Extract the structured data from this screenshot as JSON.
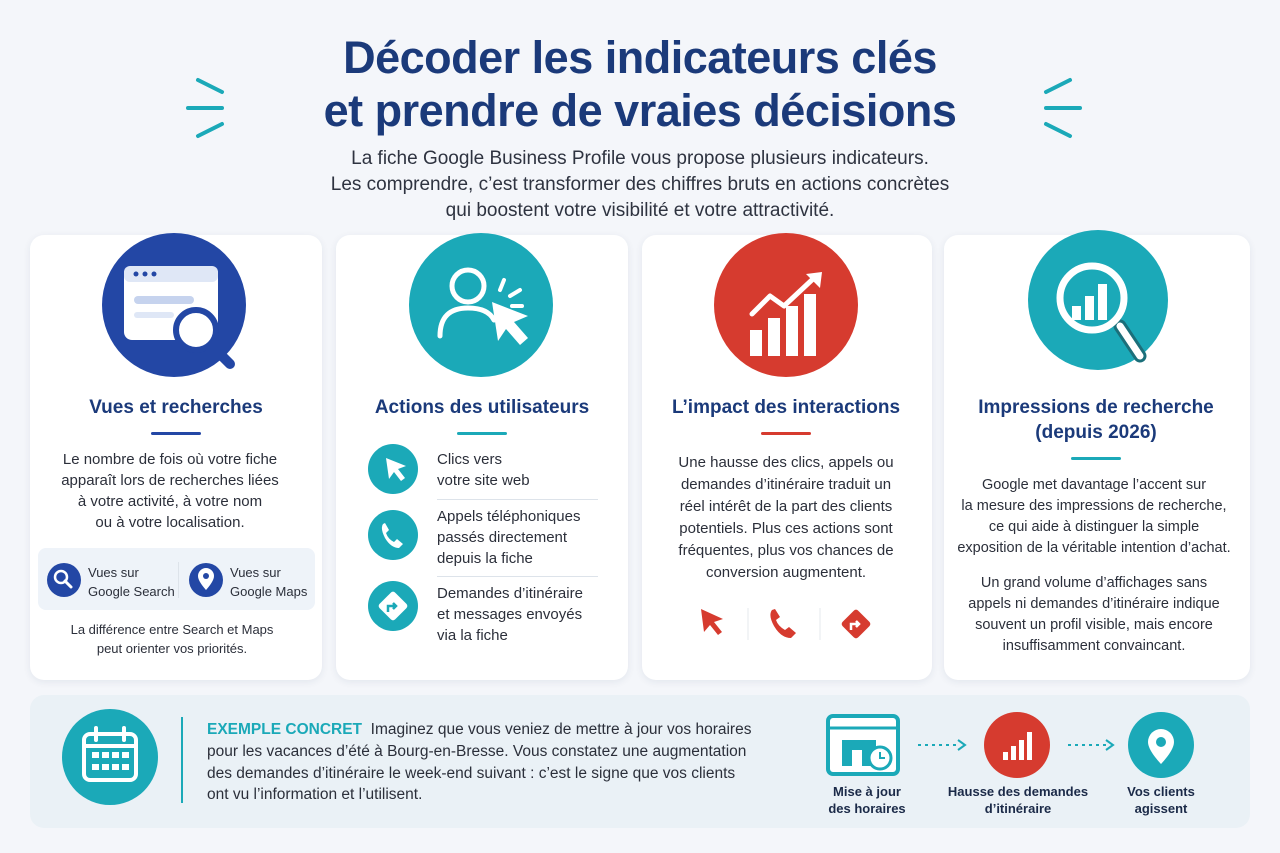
{
  "header": {
    "title": [
      "Décoder les indicateurs clés",
      "et prendre de vraies décisions"
    ],
    "subtitle": [
      "La fiche Google Business Profile vous propose plusieurs indicateurs.",
      "Les comprendre, c’est transformer des chiffres bruts en actions concrètes",
      "qui boostent votre visibilité et votre attractivité."
    ]
  },
  "cards": [
    {
      "title": [
        "Vues et recherches"
      ],
      "body": [
        "Le nombre de fois où votre fiche",
        "apparaît lors de recherches liées",
        "à votre activité, à votre nom",
        "ou à votre localisation."
      ],
      "chips": [
        [
          "Vues sur",
          "Google Search"
        ],
        [
          "Vues sur",
          "Google Maps"
        ]
      ],
      "note": [
        "La différence entre Search et Maps",
        "peut orienter vos priorités."
      ]
    },
    {
      "title": [
        "Actions des utilisateurs"
      ],
      "items": [
        [
          "Clics vers",
          "votre site web"
        ],
        [
          "Appels téléphoniques",
          "passés directement",
          "depuis la fiche"
        ],
        [
          "Demandes d’itinéraire",
          "et messages envoyés",
          "via la fiche"
        ]
      ]
    },
    {
      "title": [
        "L’impact des interactions"
      ],
      "body": [
        "Une hausse des clics, appels ou",
        "demandes d’itinéraire traduit un",
        "réel intérêt de la part des clients",
        "potentiels. Plus ces actions sont",
        "fréquentes, plus vos chances de",
        "conversion augmentent."
      ]
    },
    {
      "title": [
        "Impressions de recherche",
        "(depuis 2026)"
      ],
      "paragraphs": [
        [
          "Google met davantage l’accent sur",
          "la mesure des impressions de recherche,",
          "ce qui aide à distinguer la simple",
          "exposition de la véritable intention d’achat."
        ],
        [
          "Un grand volume d’affichages sans",
          "appels ni demandes d’itinéraire indique",
          "souvent un profil visible, mais encore",
          "insuffisamment convaincant."
        ]
      ]
    }
  ],
  "example": {
    "label": "EXEMPLE CONCRET",
    "lines": [
      "Imaginez que vous veniez de mettre à jour vos horaires",
      "pour les vacances d’été à Bourg-en-Bresse. Vous constatez une augmentation",
      "des demandes d’itinéraire le week-end suivant : c’est le signe que vos clients",
      "ont vu l’information et l’utilisent."
    ],
    "steps": [
      [
        "Mise à jour",
        "des horaires"
      ],
      [
        "Hausse des demandes",
        "d’itinéraire"
      ],
      [
        "Vos clients",
        "agissent"
      ]
    ]
  }
}
